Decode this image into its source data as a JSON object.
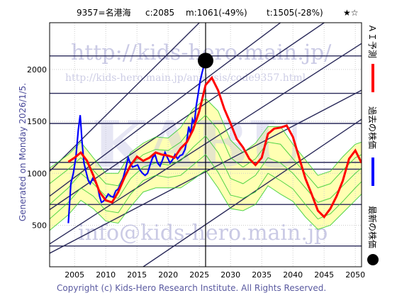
{
  "header": {
    "code_name": "9357=名港海",
    "current": "c:2085",
    "min_stat": "m:1061(-49%)",
    "target_stat": "t:1505(-28%)",
    "rating": "★☆"
  },
  "side_label": "Generated on Monday 2026/1/5.",
  "footer": "Copyright (c) Kids-Hero Research Institute. All Rights Reserved.",
  "watermarks": {
    "url": "http://kids-hero.main.jp/",
    "analysis_url": "http://kids-hero.main.jp/analysis/code9357.html",
    "email": "info@kids-hero.main.jp",
    "big": "KABU"
  },
  "legend": [
    {
      "label": "ＡＩ予測",
      "color": "#ff0000"
    },
    {
      "label": "過去の株価",
      "color": "#0000ff"
    },
    {
      "label": "最新の株価",
      "color": "#000000"
    }
  ],
  "colors": {
    "prediction": "#ff0000",
    "history": "#0000ff",
    "latest": "#000000",
    "band": "#33cc33",
    "band_fill": "#ffff99",
    "guides": "#2a2a5a"
  },
  "chart_data": {
    "type": "line",
    "xlim": [
      2001,
      2051
    ],
    "ylim": [
      100,
      2450
    ],
    "xticks": [
      2005,
      2010,
      2015,
      2020,
      2025,
      2030,
      2035,
      2040,
      2045,
      2050
    ],
    "yticks": [
      500,
      1000,
      1500,
      2000
    ],
    "latest_point": {
      "x": 2026.0,
      "y": 2085
    },
    "latest_vline": 2026.0,
    "hlines": [
      2130,
      1770,
      1480,
      1105,
      1040,
      700,
      300
    ],
    "trend_lines": [
      {
        "x1": 2001,
        "y1": 650,
        "x2": 2045,
        "y2": 2450
      },
      {
        "x1": 2001,
        "y1": 780,
        "x2": 2038,
        "y2": 2450
      },
      {
        "x1": 2001,
        "y1": 1020,
        "x2": 2025,
        "y2": 2450
      },
      {
        "x1": 2001,
        "y1": 320,
        "x2": 2051,
        "y2": 2250
      },
      {
        "x1": 2001,
        "y1": 230,
        "x2": 2051,
        "y2": 1800
      },
      {
        "x1": 2016,
        "y1": 100,
        "x2": 2051,
        "y2": 1520
      }
    ],
    "series": [
      {
        "name": "過去の株価",
        "style": "history",
        "points": [
          [
            2004.0,
            520
          ],
          [
            2004.4,
            900
          ],
          [
            2004.8,
            1000
          ],
          [
            2005.2,
            1150
          ],
          [
            2005.6,
            1420
          ],
          [
            2005.9,
            1560
          ],
          [
            2006.2,
            1300
          ],
          [
            2006.5,
            1100
          ],
          [
            2006.9,
            1000
          ],
          [
            2007.2,
            930
          ],
          [
            2007.5,
            900
          ],
          [
            2007.9,
            950
          ],
          [
            2008.3,
            920
          ],
          [
            2008.7,
            870
          ],
          [
            2009.0,
            780
          ],
          [
            2009.3,
            720
          ],
          [
            2009.6,
            730
          ],
          [
            2010.0,
            760
          ],
          [
            2010.4,
            800
          ],
          [
            2010.8,
            780
          ],
          [
            2011.2,
            770
          ],
          [
            2011.6,
            830
          ],
          [
            2012.0,
            850
          ],
          [
            2012.4,
            900
          ],
          [
            2012.8,
            960
          ],
          [
            2013.2,
            1050
          ],
          [
            2013.6,
            1150
          ],
          [
            2013.9,
            1100
          ],
          [
            2014.3,
            1060
          ],
          [
            2014.7,
            1070
          ],
          [
            2015.1,
            1080
          ],
          [
            2015.5,
            1030
          ],
          [
            2015.9,
            1000
          ],
          [
            2016.3,
            980
          ],
          [
            2016.7,
            1000
          ],
          [
            2017.1,
            1080
          ],
          [
            2017.5,
            1150
          ],
          [
            2017.9,
            1180
          ],
          [
            2018.3,
            1100
          ],
          [
            2018.7,
            1070
          ],
          [
            2019.1,
            1130
          ],
          [
            2019.5,
            1200
          ],
          [
            2019.9,
            1150
          ],
          [
            2020.3,
            1100
          ],
          [
            2020.7,
            1130
          ],
          [
            2021.1,
            1180
          ],
          [
            2021.5,
            1140
          ],
          [
            2021.9,
            1170
          ],
          [
            2022.3,
            1180
          ],
          [
            2022.7,
            1230
          ],
          [
            2023.0,
            1320
          ],
          [
            2023.3,
            1450
          ],
          [
            2023.6,
            1380
          ],
          [
            2023.9,
            1520
          ],
          [
            2024.2,
            1480
          ],
          [
            2024.5,
            1650
          ],
          [
            2024.8,
            1760
          ],
          [
            2025.1,
            1880
          ],
          [
            2025.4,
            1960
          ],
          [
            2025.7,
            2030
          ],
          [
            2026.0,
            2085
          ]
        ]
      },
      {
        "name": "ＡＩ予測",
        "style": "prediction",
        "points": [
          [
            2004.0,
            1110
          ],
          [
            2005.0,
            1150
          ],
          [
            2006.0,
            1200
          ],
          [
            2007.0,
            1120
          ],
          [
            2008.0,
            980
          ],
          [
            2009.0,
            820
          ],
          [
            2010.0,
            740
          ],
          [
            2011.0,
            720
          ],
          [
            2012.0,
            820
          ],
          [
            2013.0,
            960
          ],
          [
            2014.0,
            1080
          ],
          [
            2015.0,
            1160
          ],
          [
            2016.0,
            1120
          ],
          [
            2017.0,
            1150
          ],
          [
            2018.0,
            1200
          ],
          [
            2019.0,
            1180
          ],
          [
            2020.0,
            1170
          ],
          [
            2021.0,
            1150
          ],
          [
            2022.0,
            1240
          ],
          [
            2023.0,
            1300
          ],
          [
            2024.0,
            1420
          ],
          [
            2025.0,
            1600
          ],
          [
            2026.0,
            1850
          ],
          [
            2027.0,
            1920
          ],
          [
            2028.0,
            1800
          ],
          [
            2029.0,
            1620
          ],
          [
            2030.0,
            1480
          ],
          [
            2031.0,
            1330
          ],
          [
            2032.0,
            1250
          ],
          [
            2033.0,
            1140
          ],
          [
            2034.0,
            1080
          ],
          [
            2035.0,
            1150
          ],
          [
            2036.0,
            1380
          ],
          [
            2037.0,
            1430
          ],
          [
            2038.0,
            1440
          ],
          [
            2039.0,
            1460
          ],
          [
            2040.0,
            1350
          ],
          [
            2041.0,
            1150
          ],
          [
            2042.0,
            950
          ],
          [
            2043.0,
            800
          ],
          [
            2044.0,
            640
          ],
          [
            2045.0,
            580
          ],
          [
            2046.0,
            660
          ],
          [
            2047.0,
            780
          ],
          [
            2048.0,
            930
          ],
          [
            2049.0,
            1140
          ],
          [
            2050.0,
            1220
          ],
          [
            2051.0,
            1100
          ]
        ]
      },
      {
        "name": "",
        "style": "band",
        "points": [
          [
            2001.0,
            700
          ],
          [
            2004.0,
            860
          ],
          [
            2006.0,
            1000
          ],
          [
            2008.0,
            900
          ],
          [
            2010.0,
            780
          ],
          [
            2012.0,
            760
          ],
          [
            2014.0,
            950
          ],
          [
            2016.0,
            1060
          ],
          [
            2018.0,
            1100
          ],
          [
            2020.0,
            1080
          ],
          [
            2022.0,
            1120
          ],
          [
            2024.0,
            1250
          ],
          [
            2026.0,
            1360
          ],
          [
            2028.0,
            1200
          ],
          [
            2030.0,
            950
          ],
          [
            2032.0,
            900
          ],
          [
            2034.0,
            980
          ],
          [
            2036.0,
            1150
          ],
          [
            2038.0,
            1100
          ],
          [
            2040.0,
            1000
          ],
          [
            2042.0,
            860
          ],
          [
            2044.0,
            720
          ],
          [
            2046.0,
            760
          ],
          [
            2048.0,
            880
          ],
          [
            2050.0,
            1000
          ],
          [
            2051.0,
            1050
          ]
        ]
      },
      {
        "name": "",
        "style": "band",
        "points": [
          [
            2001.0,
            900
          ],
          [
            2004.0,
            1040
          ],
          [
            2006.0,
            1150
          ],
          [
            2008.0,
            1030
          ],
          [
            2010.0,
            900
          ],
          [
            2012.0,
            880
          ],
          [
            2014.0,
            1080
          ],
          [
            2016.0,
            1180
          ],
          [
            2018.0,
            1230
          ],
          [
            2020.0,
            1220
          ],
          [
            2022.0,
            1300
          ],
          [
            2024.0,
            1450
          ],
          [
            2026.0,
            1560
          ],
          [
            2028.0,
            1420
          ],
          [
            2030.0,
            1150
          ],
          [
            2032.0,
            1060
          ],
          [
            2034.0,
            1140
          ],
          [
            2036.0,
            1300
          ],
          [
            2038.0,
            1280
          ],
          [
            2040.0,
            1140
          ],
          [
            2042.0,
            1000
          ],
          [
            2044.0,
            860
          ],
          [
            2046.0,
            900
          ],
          [
            2048.0,
            1030
          ],
          [
            2050.0,
            1150
          ],
          [
            2051.0,
            1180
          ]
        ]
      },
      {
        "name": "",
        "style": "band",
        "points": [
          [
            2001.0,
            560
          ],
          [
            2004.0,
            720
          ],
          [
            2006.0,
            860
          ],
          [
            2008.0,
            780
          ],
          [
            2010.0,
            640
          ],
          [
            2012.0,
            620
          ],
          [
            2014.0,
            800
          ],
          [
            2016.0,
            930
          ],
          [
            2018.0,
            980
          ],
          [
            2020.0,
            960
          ],
          [
            2022.0,
            980
          ],
          [
            2024.0,
            1080
          ],
          [
            2026.0,
            1180
          ],
          [
            2028.0,
            1010
          ],
          [
            2030.0,
            790
          ],
          [
            2032.0,
            760
          ],
          [
            2034.0,
            820
          ],
          [
            2036.0,
            1000
          ],
          [
            2038.0,
            930
          ],
          [
            2040.0,
            850
          ],
          [
            2042.0,
            700
          ],
          [
            2044.0,
            560
          ],
          [
            2046.0,
            610
          ],
          [
            2048.0,
            730
          ],
          [
            2050.0,
            860
          ],
          [
            2051.0,
            920
          ]
        ]
      },
      {
        "name": "",
        "style": "band",
        "points": [
          [
            2001.0,
            1050
          ],
          [
            2004.0,
            1180
          ],
          [
            2006.0,
            1300
          ],
          [
            2008.0,
            1150
          ],
          [
            2010.0,
            1000
          ],
          [
            2012.0,
            1000
          ],
          [
            2014.0,
            1200
          ],
          [
            2016.0,
            1290
          ],
          [
            2018.0,
            1350
          ],
          [
            2020.0,
            1340
          ],
          [
            2022.0,
            1440
          ],
          [
            2024.0,
            1620
          ],
          [
            2026.0,
            1720
          ],
          [
            2028.0,
            1600
          ],
          [
            2030.0,
            1320
          ],
          [
            2032.0,
            1200
          ],
          [
            2034.0,
            1290
          ],
          [
            2036.0,
            1450
          ],
          [
            2038.0,
            1450
          ],
          [
            2040.0,
            1280
          ],
          [
            2042.0,
            1130
          ],
          [
            2044.0,
            980
          ],
          [
            2046.0,
            1020
          ],
          [
            2048.0,
            1160
          ],
          [
            2050.0,
            1280
          ],
          [
            2051.0,
            1300
          ]
        ]
      },
      {
        "name": "",
        "style": "band",
        "points": [
          [
            2001.0,
            450
          ],
          [
            2004.0,
            600
          ],
          [
            2006.0,
            740
          ],
          [
            2008.0,
            660
          ],
          [
            2010.0,
            540
          ],
          [
            2012.0,
            520
          ],
          [
            2014.0,
            680
          ],
          [
            2016.0,
            820
          ],
          [
            2018.0,
            860
          ],
          [
            2020.0,
            860
          ],
          [
            2022.0,
            860
          ],
          [
            2024.0,
            940
          ],
          [
            2026.0,
            1030
          ],
          [
            2028.0,
            860
          ],
          [
            2030.0,
            660
          ],
          [
            2032.0,
            640
          ],
          [
            2034.0,
            700
          ],
          [
            2036.0,
            880
          ],
          [
            2038.0,
            800
          ],
          [
            2040.0,
            730
          ],
          [
            2042.0,
            580
          ],
          [
            2044.0,
            460
          ],
          [
            2046.0,
            500
          ],
          [
            2048.0,
            620
          ],
          [
            2050.0,
            740
          ],
          [
            2051.0,
            800
          ]
        ]
      }
    ]
  }
}
